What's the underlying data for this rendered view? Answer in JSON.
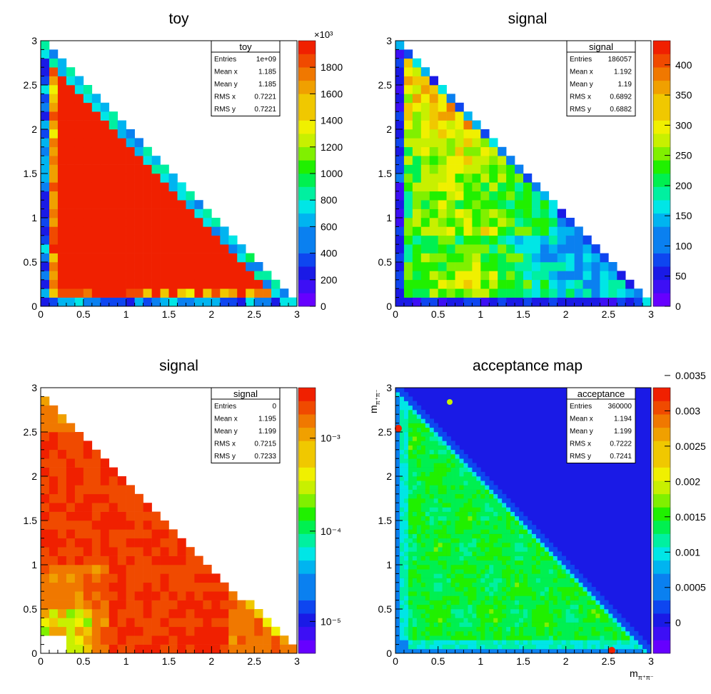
{
  "chart_data": [
    {
      "type": "heatmap",
      "title": "toy",
      "xlabel": "",
      "ylabel": "",
      "xlim": [
        0,
        3
      ],
      "ylim": [
        0,
        3
      ],
      "x_ticks": [
        "0",
        "0.5",
        "1",
        "1.5",
        "2",
        "2.5",
        "3"
      ],
      "y_ticks": [
        "0",
        "0.5",
        "1",
        "1.5",
        "2",
        "2.5",
        "3"
      ],
      "zlim": [
        0,
        2000
      ],
      "z_ticks": [
        "0",
        "200",
        "400",
        "600",
        "800",
        "1000",
        "1200",
        "1400",
        "1600",
        "1800"
      ],
      "z_multiplier": "×10³",
      "stats": {
        "title": "toy",
        "rows": [
          [
            "Entries",
            "1e+09"
          ],
          [
            "Mean x",
            "1.185"
          ],
          [
            "Mean y",
            "1.185"
          ],
          [
            "RMS x",
            "0.7221"
          ],
          [
            "RMS y",
            "0.7221"
          ]
        ]
      }
    },
    {
      "type": "heatmap",
      "title": "signal",
      "xlabel": "",
      "ylabel": "",
      "xlim": [
        0,
        3
      ],
      "ylim": [
        0,
        3
      ],
      "x_ticks": [
        "0",
        "0.5",
        "1",
        "1.5",
        "2",
        "2.5",
        "3"
      ],
      "y_ticks": [
        "0",
        "0.5",
        "1",
        "1.5",
        "2",
        "2.5",
        "3"
      ],
      "zlim": [
        0,
        440
      ],
      "z_ticks": [
        "0",
        "50",
        "100",
        "150",
        "200",
        "250",
        "300",
        "350",
        "400"
      ],
      "stats": {
        "title": "signal",
        "rows": [
          [
            "Entries",
            "186057"
          ],
          [
            "Mean x",
            "1.192"
          ],
          [
            "Mean y",
            "1.19"
          ],
          [
            "RMS x",
            "0.6892"
          ],
          [
            "RMS y",
            "0.6882"
          ]
        ]
      }
    },
    {
      "type": "heatmap",
      "title": "signal",
      "xlabel": "",
      "ylabel": "",
      "xlim": [
        0,
        3
      ],
      "ylim": [
        0,
        3
      ],
      "x_ticks": [
        "0",
        "0.5",
        "1",
        "1.5",
        "2",
        "2.5",
        "3"
      ],
      "y_ticks": [
        "0",
        "0.5",
        "1",
        "1.5",
        "2",
        "2.5",
        "3"
      ],
      "z_log": true,
      "z_ticks": [
        "10⁻⁵",
        "10⁻⁴",
        "10⁻³"
      ],
      "stats": {
        "title": "signal",
        "rows": [
          [
            "Entries",
            "0"
          ],
          [
            "Mean x",
            "1.195"
          ],
          [
            "Mean y",
            "1.199"
          ],
          [
            "RMS x",
            "0.7215"
          ],
          [
            "RMS y",
            "0.7233"
          ]
        ]
      }
    },
    {
      "type": "heatmap",
      "title": "acceptance map",
      "xlabel": "m",
      "xlabel_sub": "π⁺π⁻",
      "ylabel": "m",
      "ylabel_sub": "π⁺π⁻",
      "xlim": [
        0,
        3
      ],
      "ylim": [
        0,
        3
      ],
      "x_ticks": [
        "0",
        "0.5",
        "1",
        "1.5",
        "2",
        "2.5",
        "3"
      ],
      "y_ticks": [
        "0",
        "0.5",
        "1",
        "1.5",
        "2",
        "2.5",
        "3"
      ],
      "z_ticks": [
        "0",
        "0.0005",
        "0.001",
        "0.0015",
        "0.002",
        "0.0025",
        "0.003",
        "0.0035"
      ],
      "stats": {
        "title": "acceptance",
        "rows": [
          [
            "Entries",
            "360000"
          ],
          [
            "Mean x",
            "1.194"
          ],
          [
            "Mean y",
            "1.199"
          ],
          [
            "RMS x",
            "0.7222"
          ],
          [
            "RMS y",
            "0.7241"
          ]
        ]
      }
    }
  ]
}
